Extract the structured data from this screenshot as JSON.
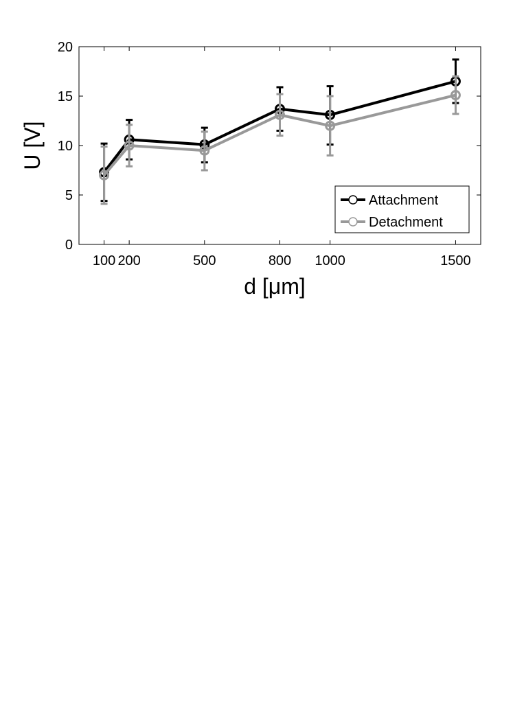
{
  "chart_data": {
    "type": "line",
    "title": "",
    "xlabel": "d [μm]",
    "ylabel": "U [V]",
    "x": [
      100,
      200,
      500,
      800,
      1000,
      1500
    ],
    "x_ticks": [
      100,
      200,
      500,
      800,
      1000,
      1500
    ],
    "y_ticks": [
      0,
      5,
      10,
      15,
      20
    ],
    "xlim": [
      0,
      1600
    ],
    "ylim": [
      0,
      20
    ],
    "grid": false,
    "legend_position": "lower-right",
    "series": [
      {
        "name": "Attachment",
        "color": "#000000",
        "marker": "circle",
        "values": [
          7.3,
          10.6,
          10.1,
          13.7,
          13.1,
          16.5
        ],
        "err_low": [
          4.4,
          8.6,
          8.3,
          11.5,
          10.1,
          14.3
        ],
        "err_high": [
          10.2,
          12.6,
          11.8,
          15.9,
          16.0,
          18.7
        ]
      },
      {
        "name": "Detachment",
        "color": "#999999",
        "marker": "circle",
        "values": [
          7.0,
          10.0,
          9.5,
          13.1,
          12.0,
          15.1
        ],
        "err_low": [
          4.1,
          7.9,
          7.5,
          11.0,
          9.0,
          13.2
        ],
        "err_high": [
          9.9,
          12.1,
          11.4,
          15.2,
          15.0,
          17.0
        ]
      }
    ]
  }
}
